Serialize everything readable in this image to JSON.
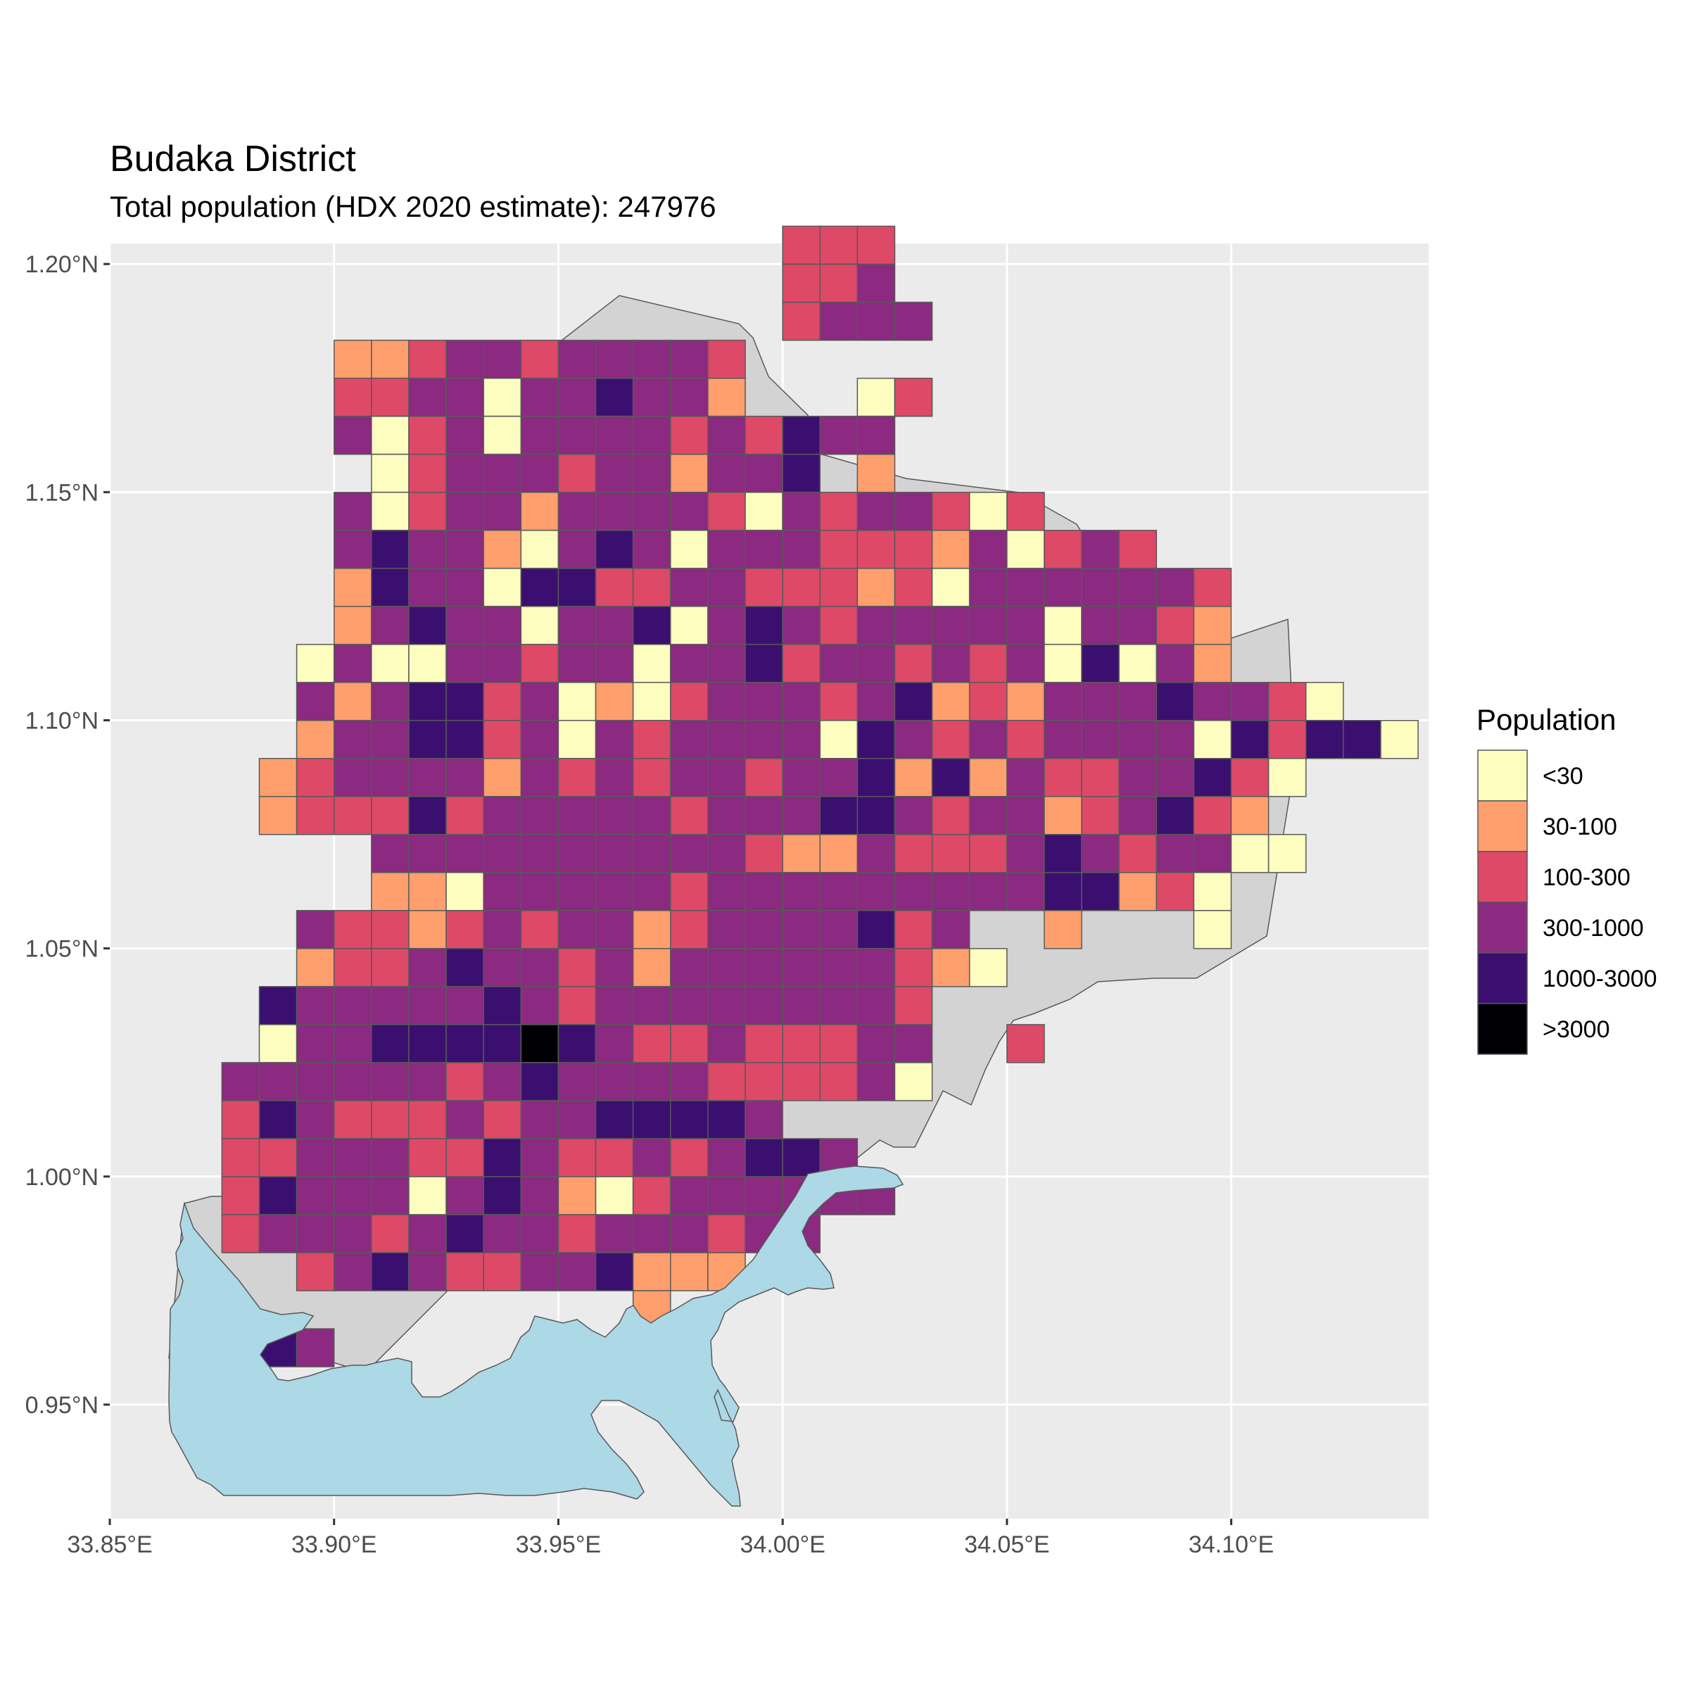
{
  "title": "Budaka District",
  "subtitle": "Total population (HDX 2020 estimate): 247976",
  "colors": {
    "panel_bg": "#ebebeb",
    "grid": "#ffffff",
    "water": "#add8e6",
    "land_outside": "#d3d3d3",
    "cell_border": "#595959"
  },
  "x_axis": {
    "ticks": [
      "33.85°E",
      "33.90°E",
      "33.95°E",
      "34.00°E",
      "34.05°E",
      "34.10°E"
    ],
    "values": [
      33.85,
      33.9,
      33.95,
      34.0,
      34.05,
      34.1
    ]
  },
  "y_axis": {
    "ticks": [
      "0.95°N",
      "1.00°N",
      "1.05°N",
      "1.10°N",
      "1.15°N",
      "1.20°N"
    ],
    "values": [
      0.95,
      1.0,
      1.05,
      1.1,
      1.15,
      1.2
    ]
  },
  "chart_data": {
    "type": "heatmap",
    "title": "Budaka District",
    "subtitle": "Total population (HDX 2020 estimate): 247976",
    "xlim": [
      33.85,
      34.144
    ],
    "ylim": [
      0.925,
      1.2045
    ],
    "cell_origin": {
      "lon": 33.8833,
      "lat": 0.9583
    },
    "cell_size_deg": 0.008333,
    "legend": {
      "title": "Population",
      "classes": [
        {
          "key": "a",
          "label": "<30",
          "color": "#fcfdbf"
        },
        {
          "key": "b",
          "label": "30-100",
          "color": "#fe9f6d"
        },
        {
          "key": "c",
          "label": "100-300",
          "color": "#de4968"
        },
        {
          "key": "d",
          "label": "300-1000",
          "color": "#8c2981"
        },
        {
          "key": "e",
          "label": "1000-3000",
          "color": "#3b0f70"
        },
        {
          "key": "f",
          "label": ">3000",
          "color": "#000004"
        }
      ]
    },
    "grid_note": "rows listed north to south; column 0 at lon 33.8833; '.' = no data; letters = legend class keys",
    "grid": [
      "...............ccc.........",
      "...............ccd.........",
      "...............cddd........",
      "...bbcddcddddc.............",
      "...ccddaddeddb...ac........",
      "...dacdaddddcdcedd.........",
      "....acdddcddbdde.b.........",
      "...dacddbddddcadcddcac.....",
      "...deddbadedadddcccbdacdc..",
      "...beddaeeccddcccbcaddddddc",
      "...bdeddaddeadedcdddddaddcb",
      "..adaaddcddaddecddcdcdaeadb",
      "..dbdeecdabacdddcdebcbdddeddca",
      "..bddeecdadcddddaedcdcddddaeceea",
      ".bcddddbdcdcddcddebebdccddeca",
      ".bcccecdddddcdddeedcddbcdecb",
      "....ddddddddddcbbdcccdedcddaa",
      "....bbadddddcdddddddddeebca",
      "..dccbcdcddbcddddecd..b...a",
      "..bccdeddcdbddddddcba",
      ".edddddedcddddddddc",
      ".addeeeefedccdcccdd..c",
      "ddddddcdeddddccccda",
      "cedcccdcddeeeed",
      "ccdddccedccdcdeed",
      "cedddadedbacdddddd",
      "cdddcdeddcdddcdd",
      "..cdedccddebbb",
      "...........b",
      ".ed........."
    ],
    "grid_left_offset_cols": [
      0
    ]
  }
}
